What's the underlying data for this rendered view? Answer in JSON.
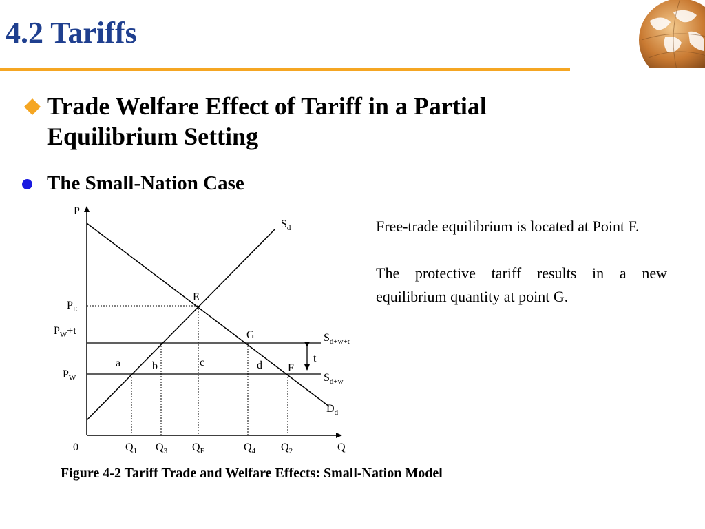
{
  "slide": {
    "title": "4.2 Tariffs",
    "bullet1": "Trade Welfare Effect of Tariff in a Partial Equilibrium Setting",
    "bullet2": "The Small-Nation Case",
    "paragraph1": "Free-trade equilibrium is located at Point F.",
    "paragraph2": "The protective tariff results in a new equilibrium quantity at point G.",
    "caption": "Figure 4-2 Tariff Trade and Welfare Effects: Small-Nation Model",
    "accent_color": "#f5a623",
    "title_color": "#1f3f8f",
    "bullet_colors": {
      "diamond": "#f5a623",
      "dot": "#1a1ae0"
    },
    "logo_icon": "globe-icon"
  },
  "diagram": {
    "axis_y": "P",
    "axis_x": "Q",
    "origin": "0",
    "y_labels": {
      "pe": {
        "main": "P",
        "sub": "E"
      },
      "pwt": {
        "main": "P",
        "sub": "W",
        "suffix": "+t"
      },
      "pw": {
        "main": "P",
        "sub": "W"
      }
    },
    "x_labels": {
      "q1": {
        "main": "Q",
        "sub": "1"
      },
      "q3": {
        "main": "Q",
        "sub": "3"
      },
      "qe": {
        "main": "Q",
        "sub": "E"
      },
      "q4": {
        "main": "Q",
        "sub": "4"
      },
      "q2": {
        "main": "Q",
        "sub": "2"
      }
    },
    "curve_labels": {
      "sd": {
        "main": "S",
        "sub": "d"
      },
      "sdwt": {
        "main": "S",
        "sub": "d+w+t"
      },
      "sdw": {
        "main": "S",
        "sub": "d+w"
      },
      "dd": {
        "main": "D",
        "sub": "d"
      }
    },
    "points": {
      "e": "E",
      "g": "G",
      "f": "F"
    },
    "areas": {
      "a": "a",
      "b": "b",
      "c": "c",
      "d": "d"
    },
    "tariff": "t"
  }
}
